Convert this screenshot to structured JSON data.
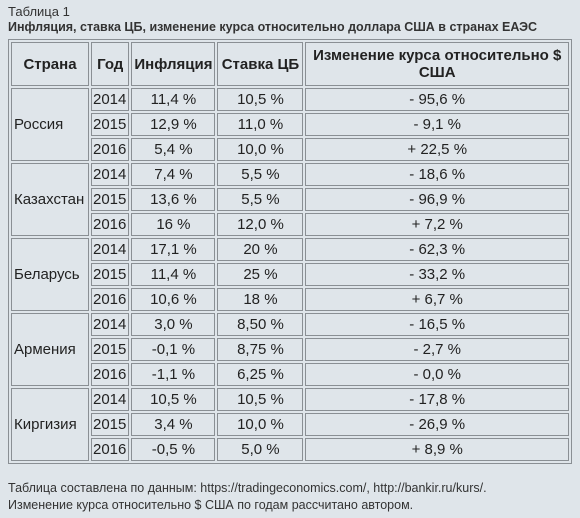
{
  "caption": "Таблица 1",
  "title": "Инфляция, ставка ЦБ, изменение курса относительно доллара США в странах ЕАЭС",
  "table": {
    "header": [
      "Страна",
      "Год",
      "Инфляция",
      "Ставка ЦБ",
      "Изменение курса относительно $ США"
    ],
    "groups": [
      {
        "country": "Россия",
        "rows": [
          [
            "2014",
            "11,4 %",
            "10,5 %",
            "- 95,6 %"
          ],
          [
            "2015",
            "12,9 %",
            "11,0 %",
            "- 9,1 %"
          ],
          [
            "2016",
            "5,4 %",
            "10,0 %",
            "+ 22,5 %"
          ]
        ]
      },
      {
        "country": "Казахстан",
        "rows": [
          [
            "2014",
            "7,4 %",
            "5,5 %",
            "- 18,6 %"
          ],
          [
            "2015",
            "13,6 %",
            "5,5 %",
            "- 96,9 %"
          ],
          [
            "2016",
            "16 %",
            "12,0 %",
            "+ 7,2 %"
          ]
        ]
      },
      {
        "country": "Беларусь",
        "rows": [
          [
            "2014",
            "17,1 %",
            "20 %",
            "- 62,3 %"
          ],
          [
            "2015",
            "11,4 %",
            "25 %",
            "- 33,2 %"
          ],
          [
            "2016",
            "10,6 %",
            "18 %",
            "+ 6,7 %"
          ]
        ]
      },
      {
        "country": "Армения",
        "rows": [
          [
            "2014",
            "3,0 %",
            "8,50 %",
            "- 16,5 %"
          ],
          [
            "2015",
            "-0,1 %",
            "8,75 %",
            "- 2,7 %"
          ],
          [
            "2016",
            "-1,1 %",
            "6,25 %",
            "- 0,0 %"
          ]
        ]
      },
      {
        "country": "Киргизия",
        "rows": [
          [
            "2014",
            "10,5 %",
            "10,5 %",
            "- 17,8 %"
          ],
          [
            "2015",
            "3,4 %",
            "10,0 %",
            "- 26,9 %"
          ],
          [
            "2016",
            "-0,5 %",
            "5,0 %",
            "+ 8,9 %"
          ]
        ]
      }
    ]
  },
  "notes": [
    "Таблица составлена по данным: https://tradingeconomics.com/, http://bankir.ru/kurs/.",
    "Изменение курса относительно $ США по годам рассчитано автором."
  ]
}
